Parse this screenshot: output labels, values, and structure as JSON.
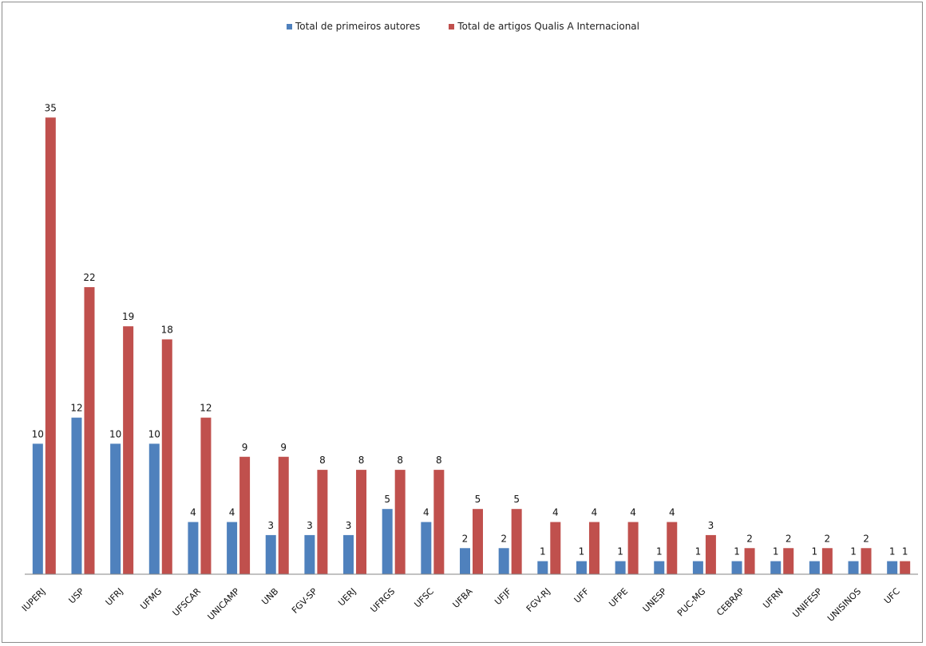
{
  "chart_data": {
    "type": "bar",
    "categories": [
      "IUPERJ",
      "USP",
      "UFRJ",
      "UFMG",
      "UFSCAR",
      "UNICAMP",
      "UNB",
      "FGV-SP",
      "UERJ",
      "UFRGS",
      "UFSC",
      "UFBA",
      "UFJF",
      "FGV-RJ",
      "UFF",
      "UFPE",
      "UNESP",
      "PUC-MG",
      "CEBRAP",
      "UFRN",
      "UNIFESP",
      "UNISINOS",
      "UFC"
    ],
    "series": [
      {
        "name": "Total de primeiros autores",
        "color": "#4f81bd",
        "values": [
          10,
          12,
          10,
          10,
          4,
          4,
          3,
          3,
          3,
          5,
          4,
          2,
          2,
          1,
          1,
          1,
          1,
          1,
          1,
          1,
          1,
          1,
          1
        ]
      },
      {
        "name": "Total de artigos Qualis A Internacional",
        "color": "#c0504d",
        "values": [
          35,
          22,
          19,
          18,
          12,
          9,
          9,
          8,
          8,
          8,
          8,
          5,
          5,
          4,
          4,
          4,
          4,
          3,
          2,
          2,
          2,
          2,
          1
        ]
      }
    ],
    "ylim": [
      0,
      36
    ],
    "grid": false,
    "legend_position": "top-center",
    "data_labels": true
  }
}
